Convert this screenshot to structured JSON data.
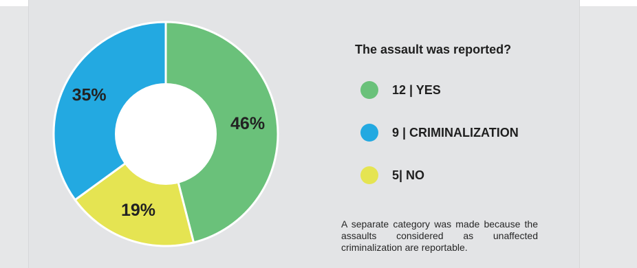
{
  "chart_data": {
    "type": "pie",
    "variant": "donut",
    "title": "The assault was reported?",
    "slices": [
      {
        "name": "YES",
        "count": 12,
        "value": 46,
        "label": "46%",
        "color": "#6ac17a"
      },
      {
        "name": "NO",
        "count": 5,
        "value": 19,
        "label": "19%",
        "color": "#e5e452"
      },
      {
        "name": "CRIMINALIZATION",
        "count": 9,
        "value": 35,
        "label": "35%",
        "color": "#23a9e1"
      }
    ],
    "legend": [
      {
        "text": "12 | YES",
        "color": "#6ac17a"
      },
      {
        "text": "9 | CRIMINALIZATION",
        "color": "#23a9e1"
      },
      {
        "text": "5| NO",
        "color": "#e5e452"
      }
    ],
    "legend_placement": "right"
  },
  "note": "A separate category was made because the assaults considered as unaffected criminalization are reportable."
}
